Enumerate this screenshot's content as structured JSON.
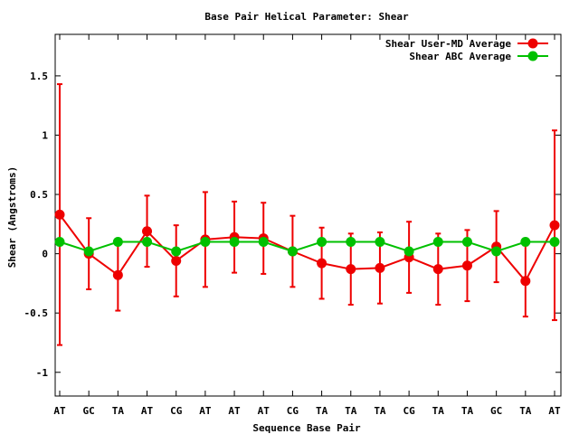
{
  "chart_data": {
    "type": "line",
    "title": "Base Pair Helical Parameter: Shear",
    "xlabel": "Sequence Base Pair",
    "ylabel": "Shear (Angstroms)",
    "categories": [
      "AT",
      "GC",
      "TA",
      "AT",
      "CG",
      "AT",
      "AT",
      "AT",
      "CG",
      "TA",
      "TA",
      "TA",
      "CG",
      "TA",
      "TA",
      "GC",
      "TA",
      "AT"
    ],
    "ylim": [
      -1.2,
      1.85
    ],
    "yticks": [
      -1,
      -0.5,
      0,
      0.5,
      1,
      1.5
    ],
    "ytick_labels": [
      "-1",
      "-0.5",
      "0",
      "0.5",
      "1",
      "1.5"
    ],
    "grid": false,
    "legend_position": "top-right",
    "series": [
      {
        "name": "Shear User-MD Average",
        "color": "#ee0000",
        "values": [
          0.33,
          0.0,
          -0.18,
          0.19,
          -0.06,
          0.12,
          0.14,
          0.13,
          0.02,
          -0.08,
          -0.13,
          -0.12,
          -0.03,
          -0.13,
          -0.1,
          0.06,
          -0.23,
          0.24
        ],
        "error_low": [
          -0.77,
          -0.3,
          -0.48,
          -0.11,
          -0.36,
          -0.28,
          -0.16,
          -0.17,
          -0.28,
          -0.38,
          -0.43,
          -0.42,
          -0.33,
          -0.43,
          -0.4,
          -0.24,
          -0.53,
          -0.56
        ],
        "error_high": [
          1.43,
          0.3,
          0.12,
          0.49,
          0.24,
          0.52,
          0.44,
          0.43,
          0.32,
          0.22,
          0.17,
          0.18,
          0.27,
          0.17,
          0.2,
          0.36,
          0.07,
          1.04
        ]
      },
      {
        "name": "Shear ABC Average",
        "color": "#00c000",
        "values": [
          0.1,
          0.02,
          0.1,
          0.1,
          0.02,
          0.1,
          0.1,
          0.1,
          0.02,
          0.1,
          0.1,
          0.1,
          0.02,
          0.1,
          0.1,
          0.02,
          0.1,
          0.1
        ]
      }
    ]
  }
}
